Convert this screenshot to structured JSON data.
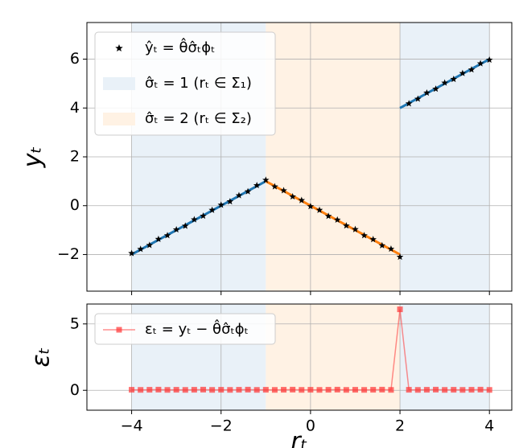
{
  "chart_data": [
    {
      "type": "scatter",
      "ylabel": "yₜ",
      "grid": true,
      "legend": "upper left",
      "xlim": [
        -5,
        4.5
      ],
      "xticks": [
        -4,
        -2,
        0,
        2,
        4
      ],
      "ylim": [
        -3.5,
        7.5
      ],
      "yticks": [
        {
          "value": -2,
          "label": "−2"
        },
        0,
        2,
        4,
        6
      ],
      "x": [
        -4.0,
        -3.8,
        -3.6,
        -3.4,
        -3.2,
        -3.0,
        -2.8,
        -2.6,
        -2.4,
        -2.2,
        -2.0,
        -1.8,
        -1.6,
        -1.4,
        -1.2,
        -1.0,
        -0.8,
        -0.6,
        -0.4,
        -0.2,
        0.0,
        0.2,
        0.4,
        0.6,
        0.8,
        1.0,
        1.2,
        1.4,
        1.6,
        1.8,
        2.0,
        2.2,
        2.4,
        2.6,
        2.8,
        3.0,
        3.2,
        3.4,
        3.6,
        3.8,
        4.0
      ],
      "series": [
        {
          "name": "ŷₜ = θ̂σ̂ₜϕₜ",
          "color": "#000000",
          "marker": "star",
          "values": [
            -1.95,
            -1.78,
            -1.62,
            -1.37,
            -1.22,
            -0.98,
            -0.83,
            -0.57,
            -0.42,
            -0.18,
            0.03,
            0.17,
            0.42,
            0.58,
            0.83,
            1.05,
            0.78,
            0.62,
            0.37,
            0.22,
            -0.03,
            -0.18,
            -0.43,
            -0.58,
            -0.82,
            -0.97,
            -1.22,
            -1.38,
            -1.63,
            -1.77,
            -2.1,
            4.18,
            4.37,
            4.62,
            4.78,
            5.03,
            5.18,
            5.42,
            5.57,
            5.82,
            5.97
          ]
        }
      ],
      "regions": [
        {
          "name": "σ̂ₜ = 1 (rₜ ∈ Σ₁)",
          "color": "#e9f1f8",
          "spans": [
            [
              -4,
              -1
            ],
            [
              2,
              4
            ]
          ]
        },
        {
          "name": "σ̂ₜ = 2 (rₜ ∈ Σ₂)",
          "color": "#fff2e4",
          "spans": [
            [
              -1,
              2
            ]
          ]
        }
      ],
      "fit_lines": [
        {
          "color": "#1f77b4",
          "x": [
            -4,
            -1
          ],
          "y": [
            -2,
            1
          ]
        },
        {
          "color": "#ff7f0e",
          "x": [
            -1,
            2
          ],
          "y": [
            1,
            -2
          ]
        },
        {
          "color": "#1f77b4",
          "x": [
            2,
            4
          ],
          "y": [
            4,
            6
          ]
        }
      ]
    },
    {
      "type": "line",
      "xlabel": "rₜ",
      "ylabel": "εₜ",
      "grid": true,
      "legend": "upper left",
      "xlim": [
        -5,
        4.5
      ],
      "xticks": [
        {
          "value": -4,
          "label": "−4"
        },
        {
          "value": -2,
          "label": "−2"
        },
        0,
        2,
        4
      ],
      "ylim": [
        -1.5,
        6.5
      ],
      "yticks": [
        0,
        5
      ],
      "x": [
        -4.0,
        -3.8,
        -3.6,
        -3.4,
        -3.2,
        -3.0,
        -2.8,
        -2.6,
        -2.4,
        -2.2,
        -2.0,
        -1.8,
        -1.6,
        -1.4,
        -1.2,
        -1.0,
        -0.8,
        -0.6,
        -0.4,
        -0.2,
        0.0,
        0.2,
        0.4,
        0.6,
        0.8,
        1.0,
        1.2,
        1.4,
        1.6,
        1.8,
        2.0,
        2.2,
        2.4,
        2.6,
        2.8,
        3.0,
        3.2,
        3.4,
        3.6,
        3.8,
        4.0
      ],
      "series": [
        {
          "name": "εₜ = yₜ − θ̂σ̂ₜϕₜ",
          "color": "#ff3333",
          "marker": "square",
          "values": [
            0.04,
            0.03,
            0.04,
            0.05,
            0.03,
            0.04,
            0.03,
            0.04,
            0.05,
            0.03,
            0.04,
            0.03,
            0.04,
            0.05,
            0.03,
            0.04,
            0.03,
            0.04,
            0.05,
            0.03,
            0.04,
            0.03,
            0.04,
            0.05,
            0.03,
            0.04,
            0.03,
            0.04,
            0.05,
            0.03,
            6.1,
            0.04,
            0.03,
            0.04,
            0.05,
            0.03,
            0.04,
            0.03,
            0.04,
            0.05,
            0.03
          ]
        }
      ],
      "regions": [
        {
          "color": "#e9f1f8",
          "spans": [
            [
              -4,
              -1
            ],
            [
              2,
              4
            ]
          ]
        },
        {
          "color": "#fff2e4",
          "spans": [
            [
              -1,
              2
            ]
          ]
        }
      ]
    }
  ]
}
